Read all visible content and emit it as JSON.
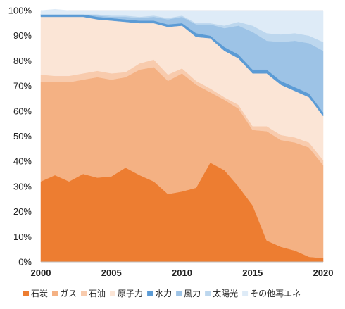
{
  "chart_data": {
    "type": "area",
    "stacked": true,
    "title": "",
    "xlabel": "",
    "ylabel": "",
    "xlim": [
      2000,
      2020
    ],
    "ylim": [
      0,
      100
    ],
    "x": [
      2000,
      2001,
      2002,
      2003,
      2004,
      2005,
      2006,
      2007,
      2008,
      2009,
      2010,
      2011,
      2012,
      2013,
      2014,
      2015,
      2016,
      2017,
      2018,
      2019,
      2020
    ],
    "x_tick_labels": [
      "2000",
      "2005",
      "2010",
      "2015",
      "2020"
    ],
    "x_tick_values": [
      2000,
      2005,
      2010,
      2015,
      2020
    ],
    "y_tick_labels": [
      "0%",
      "10%",
      "20%",
      "30%",
      "40%",
      "50%",
      "60%",
      "70%",
      "80%",
      "90%",
      "100%"
    ],
    "y_tick_values": [
      0,
      10,
      20,
      30,
      40,
      50,
      60,
      70,
      80,
      90,
      100
    ],
    "grid": true,
    "legend_position": "bottom",
    "series": [
      {
        "name": "石炭",
        "color": "#ed7d31",
        "values": [
          32,
          34.5,
          32,
          35,
          33.5,
          34,
          37.5,
          34.5,
          32,
          27,
          28,
          29.5,
          39.5,
          36.5,
          30,
          22.5,
          8.5,
          6,
          4.5,
          2,
          1.5
        ]
      },
      {
        "name": "ガス",
        "color": "#f4b183",
        "values": [
          39.5,
          37,
          39.5,
          37.5,
          40,
          38.5,
          36,
          42,
          45.5,
          45,
          47,
          41,
          28,
          28,
          31,
          30,
          43.5,
          42.5,
          43,
          43.5,
          37
        ]
      },
      {
        "name": "石油",
        "color": "#f8cbad",
        "values": [
          3,
          2.5,
          2.5,
          2.5,
          2.5,
          2.5,
          2,
          2.5,
          3,
          2.5,
          2,
          1.5,
          1.5,
          1,
          1.5,
          1.5,
          2,
          2,
          2,
          2,
          2
        ]
      },
      {
        "name": "原子力",
        "color": "#fbe5d6",
        "values": [
          23,
          23.5,
          23.5,
          22.5,
          20.5,
          21,
          20,
          16,
          14.5,
          19,
          17,
          17.5,
          20,
          18.5,
          18.5,
          21,
          21,
          20,
          18.5,
          18,
          17.5
        ]
      },
      {
        "name": "水力",
        "color": "#5b9bd5",
        "values": [
          1,
          1,
          1,
          1,
          1,
          1,
          1,
          1,
          1,
          1,
          1,
          1.5,
          1,
          1.5,
          1.5,
          1.5,
          1.5,
          1.5,
          1.5,
          1.5,
          1.5
        ]
      },
      {
        "name": "風力",
        "color": "#9dc3e6",
        "values": [
          0,
          0,
          0,
          0,
          0.5,
          0.5,
          1,
          1,
          1.5,
          2,
          2.5,
          3.5,
          4.5,
          7.5,
          11.5,
          15,
          11.5,
          15.5,
          18.5,
          20,
          24.5
        ]
      },
      {
        "name": "太陽光",
        "color": "#bdd7ee",
        "values": [
          0,
          0,
          0,
          0,
          0.5,
          0.5,
          0.5,
          0.5,
          0.5,
          0.5,
          0.5,
          0.5,
          0.5,
          1,
          1.5,
          2.5,
          3,
          3,
          3,
          3,
          3.5
        ]
      },
      {
        "name": "その他再エネ",
        "color": "#deebf7",
        "values": [
          1.5,
          2,
          1.5,
          1.5,
          1.5,
          2,
          2,
          2.5,
          2,
          3,
          2,
          5,
          5,
          6,
          4.5,
          6,
          9,
          9.5,
          9,
          10,
          12.5
        ]
      }
    ]
  }
}
